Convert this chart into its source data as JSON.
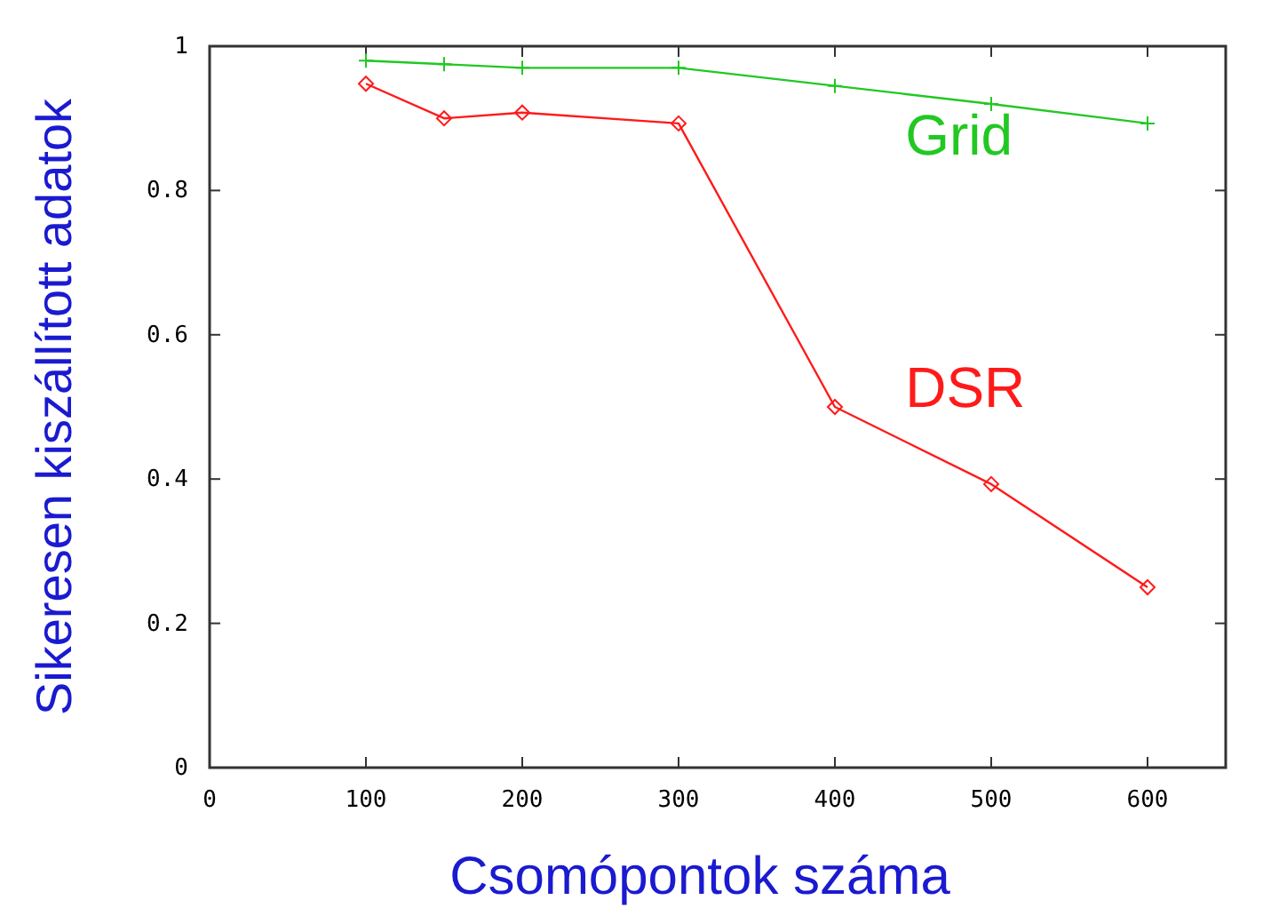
{
  "chart_data": {
    "type": "line",
    "xlabel": "Csomópontok száma",
    "ylabel": "Sikeresen kiszállított adatok",
    "xlim": [
      0,
      650
    ],
    "xticks": [
      0,
      100,
      200,
      300,
      400,
      500,
      600
    ],
    "ylim": [
      0,
      1
    ],
    "yticks": [
      {
        "value": 0,
        "label": "0"
      },
      {
        "value": 0.2,
        "label": "0.2"
      },
      {
        "value": 0.4,
        "label": "0.4"
      },
      {
        "value": 0.6,
        "label": "0.6"
      },
      {
        "value": 0.8,
        "label": "0.8"
      },
      {
        "value": 1,
        "label": "1"
      }
    ],
    "x": [
      100,
      150,
      200,
      300,
      400,
      500,
      600
    ],
    "series": [
      {
        "name": "Grid",
        "color": "#22c822",
        "marker": "cross",
        "values": [
          0.98,
          0.975,
          0.97,
          0.97,
          0.945,
          0.92,
          0.893
        ]
      },
      {
        "name": "DSR",
        "color": "#ff1a1a",
        "marker": "diamond",
        "values": [
          0.948,
          0.9,
          0.908,
          0.893,
          0.5,
          0.393,
          0.25
        ]
      }
    ],
    "grid": false,
    "line_style": "solid"
  }
}
